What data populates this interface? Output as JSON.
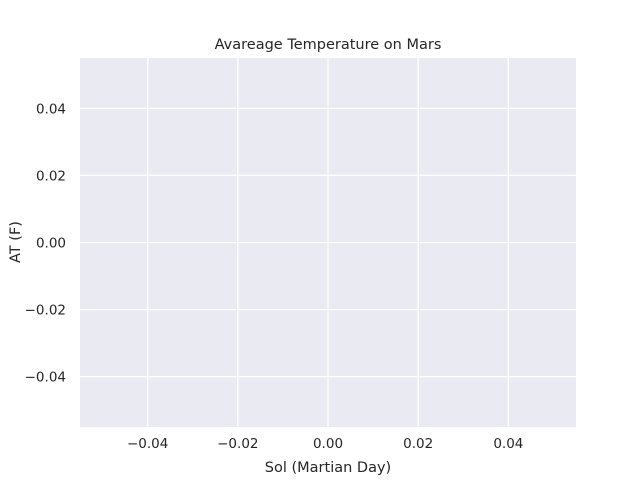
{
  "chart_data": {
    "type": "scatter",
    "title": "Avareage Temperature on Mars",
    "xlabel": "Sol (Martian Day)",
    "ylabel": "AT (F)",
    "x": [],
    "y": [],
    "xlim": [
      -0.055,
      0.055
    ],
    "ylim": [
      -0.055,
      0.055
    ],
    "xticks": [
      -0.04,
      -0.02,
      0.0,
      0.02,
      0.04
    ],
    "yticks": [
      -0.04,
      -0.02,
      0.0,
      0.02,
      0.04
    ],
    "xtick_labels": [
      "−0.04",
      "−0.02",
      "0.00",
      "0.02",
      "0.04"
    ],
    "ytick_labels": [
      "−0.04",
      "−0.02",
      "0.00",
      "0.02",
      "0.04"
    ],
    "grid": true,
    "colors": {
      "plot_background": "#eaeaf2",
      "grid": "#ffffff",
      "text": "#262626"
    }
  }
}
